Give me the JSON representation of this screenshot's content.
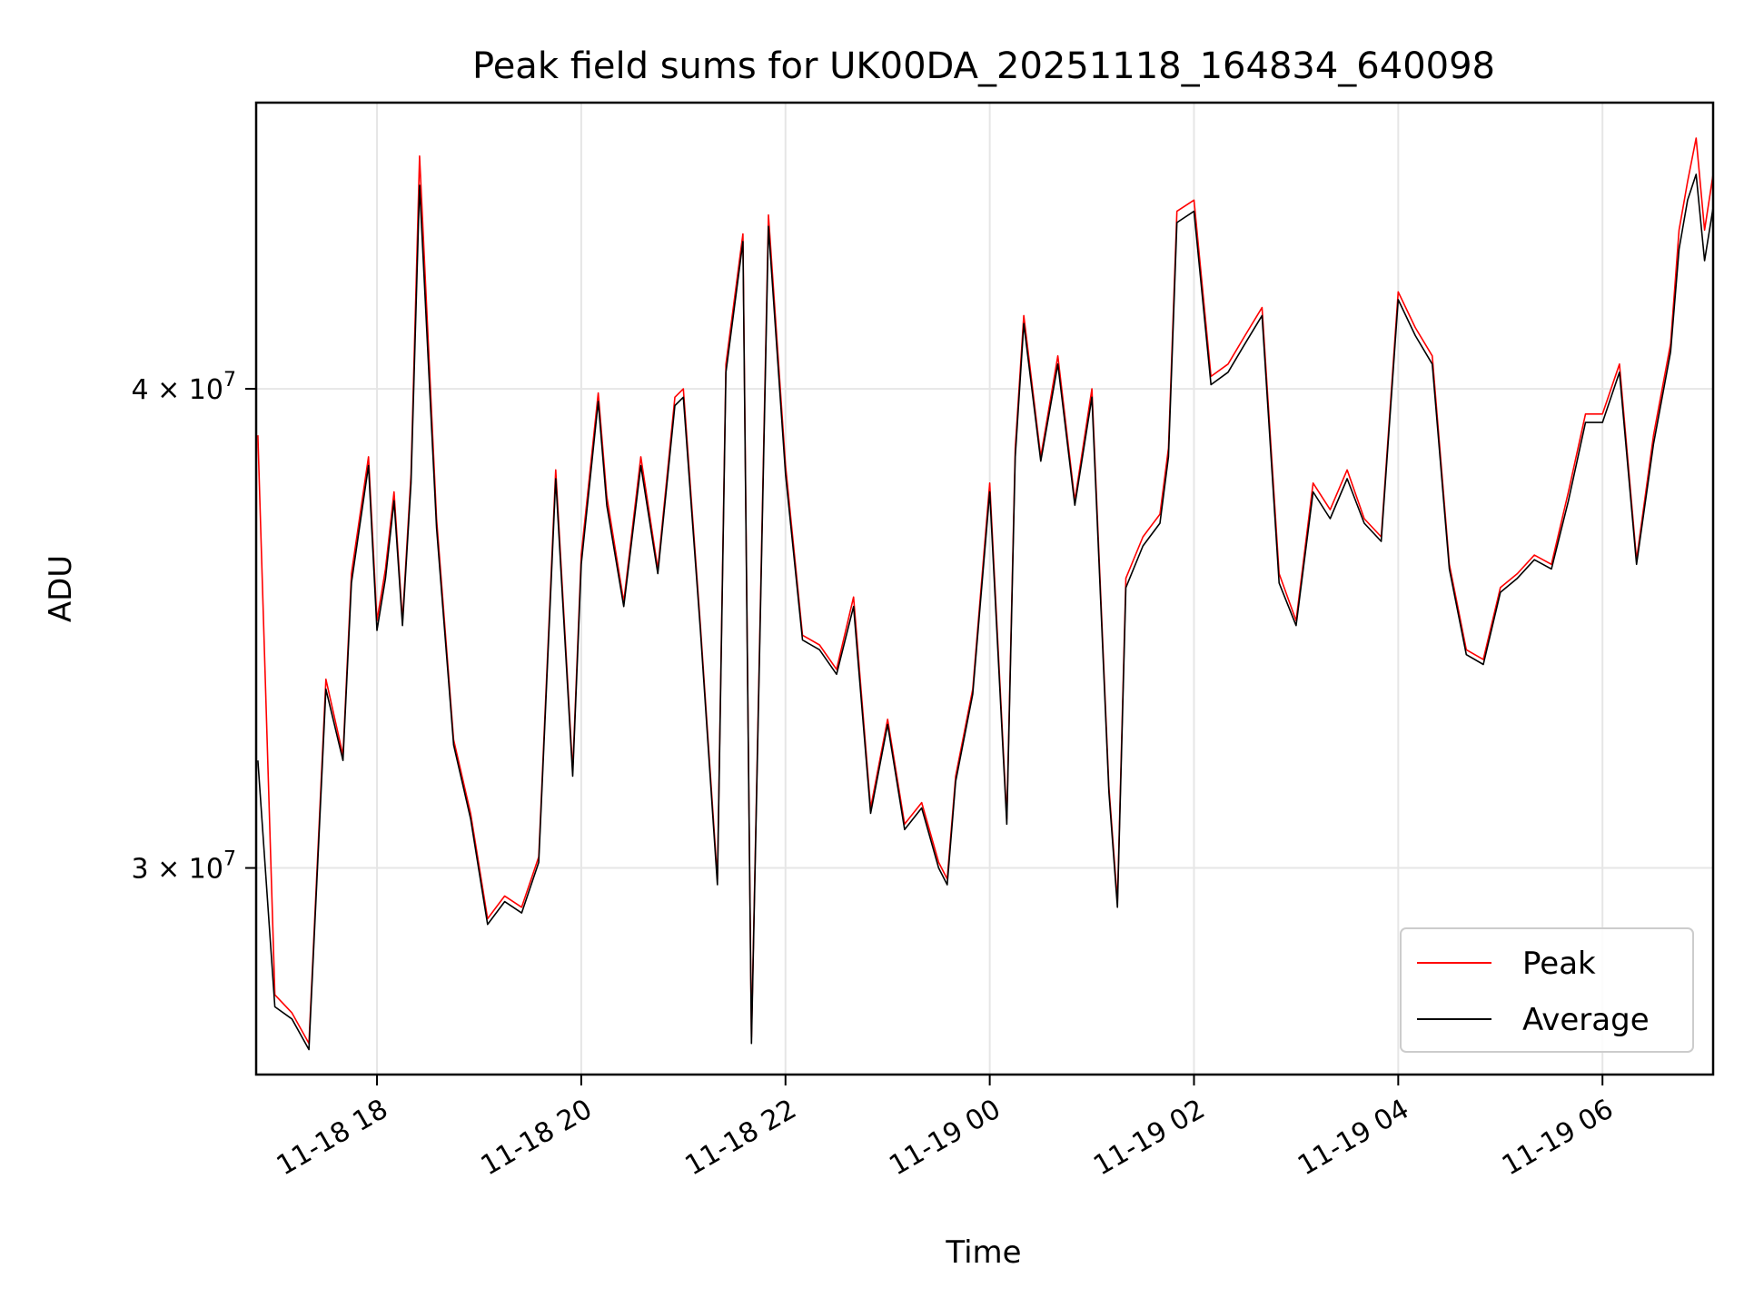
{
  "chart_data": {
    "type": "line",
    "title": "Peak field sums for UK00DA_20251118_164834_640098",
    "xlabel": "Time",
    "ylabel": "ADU",
    "y_scale": "log",
    "grid": true,
    "legend_position": "lower-right",
    "xlim": [
      "2025-11-18 16:49",
      "2025-11-19 07:05"
    ],
    "ylim": [
      26500000,
      47500000
    ],
    "x_ticks": [
      "11-18 18",
      "11-18 20",
      "11-18 22",
      "11-19 00",
      "11-19 02",
      "11-19 04",
      "11-19 06"
    ],
    "x_tick_times": [
      "2025-11-18 18:00",
      "2025-11-18 20:00",
      "2025-11-18 22:00",
      "2025-11-19 00:00",
      "2025-11-19 02:00",
      "2025-11-19 04:00",
      "2025-11-19 06:00"
    ],
    "y_ticks": [
      {
        "value": 30000000,
        "mantissa": "3",
        "exponent": "7"
      },
      {
        "value": 40000000,
        "mantissa": "4",
        "exponent": "7"
      }
    ],
    "series": [
      {
        "name": "Peak",
        "color": "#ff0000",
        "x": [
          "2025-11-18 16:50",
          "2025-11-18 17:00",
          "2025-11-18 17:10",
          "2025-11-18 17:20",
          "2025-11-18 17:30",
          "2025-11-18 17:40",
          "2025-11-18 17:45",
          "2025-11-18 17:55",
          "2025-11-18 18:00",
          "2025-11-18 18:05",
          "2025-11-18 18:10",
          "2025-11-18 18:15",
          "2025-11-18 18:20",
          "2025-11-18 18:25",
          "2025-11-18 18:35",
          "2025-11-18 18:45",
          "2025-11-18 18:55",
          "2025-11-18 19:05",
          "2025-11-18 19:15",
          "2025-11-18 19:25",
          "2025-11-18 19:35",
          "2025-11-18 19:45",
          "2025-11-18 19:55",
          "2025-11-18 20:00",
          "2025-11-18 20:10",
          "2025-11-18 20:15",
          "2025-11-18 20:25",
          "2025-11-18 20:35",
          "2025-11-18 20:45",
          "2025-11-18 20:55",
          "2025-11-18 21:00",
          "2025-11-18 21:10",
          "2025-11-18 21:20",
          "2025-11-18 21:25",
          "2025-11-18 21:35",
          "2025-11-18 21:40",
          "2025-11-18 21:50",
          "2025-11-18 22:00",
          "2025-11-18 22:10",
          "2025-11-18 22:20",
          "2025-11-18 22:30",
          "2025-11-18 22:40",
          "2025-11-18 22:50",
          "2025-11-18 23:00",
          "2025-11-18 23:10",
          "2025-11-18 23:20",
          "2025-11-18 23:30",
          "2025-11-18 23:35",
          "2025-11-18 23:40",
          "2025-11-18 23:50",
          "2025-11-19 00:00",
          "2025-11-19 00:10",
          "2025-11-19 00:15",
          "2025-11-19 00:20",
          "2025-11-19 00:30",
          "2025-11-19 00:40",
          "2025-11-19 00:50",
          "2025-11-19 01:00",
          "2025-11-19 01:10",
          "2025-11-19 01:15",
          "2025-11-19 01:20",
          "2025-11-19 01:30",
          "2025-11-19 01:40",
          "2025-11-19 01:45",
          "2025-11-19 01:50",
          "2025-11-19 02:00",
          "2025-11-19 02:10",
          "2025-11-19 02:20",
          "2025-11-19 02:30",
          "2025-11-19 02:40",
          "2025-11-19 02:50",
          "2025-11-19 03:00",
          "2025-11-19 03:10",
          "2025-11-19 03:20",
          "2025-11-19 03:30",
          "2025-11-19 03:40",
          "2025-11-19 03:50",
          "2025-11-19 04:00",
          "2025-11-19 04:10",
          "2025-11-19 04:20",
          "2025-11-19 04:30",
          "2025-11-19 04:40",
          "2025-11-19 04:50",
          "2025-11-19 05:00",
          "2025-11-19 05:10",
          "2025-11-19 05:20",
          "2025-11-19 05:30",
          "2025-11-19 05:40",
          "2025-11-19 05:50",
          "2025-11-19 06:00",
          "2025-11-19 06:10",
          "2025-11-19 06:20",
          "2025-11-19 06:30",
          "2025-11-19 06:40",
          "2025-11-19 06:45",
          "2025-11-19 06:50",
          "2025-11-19 06:55",
          "2025-11-19 07:00",
          "2025-11-19 07:05"
        ],
        "y": [
          38900000,
          27800000,
          27500000,
          27000000,
          33600000,
          32100000,
          35800000,
          38400000,
          34800000,
          35900000,
          37600000,
          34800000,
          38000000,
          46000000,
          37000000,
          32400000,
          31000000,
          29100000,
          29500000,
          29300000,
          30200000,
          38100000,
          31800000,
          36200000,
          39900000,
          37500000,
          35200000,
          38400000,
          35900000,
          39800000,
          40000000,
          34700000,
          29800000,
          40600000,
          43900000,
          27100000,
          44400000,
          38200000,
          34500000,
          34300000,
          33800000,
          35300000,
          31100000,
          32800000,
          30800000,
          31200000,
          30100000,
          29800000,
          31700000,
          33400000,
          37800000,
          30900000,
          38600000,
          41800000,
          38400000,
          40800000,
          37400000,
          40000000,
          31500000,
          29400000,
          35700000,
          36600000,
          37100000,
          38600000,
          44500000,
          44800000,
          40300000,
          40600000,
          41300000,
          42000000,
          35800000,
          34800000,
          37800000,
          37200000,
          38100000,
          37000000,
          36600000,
          42400000,
          41500000,
          40800000,
          36000000,
          34200000,
          34000000,
          35500000,
          35800000,
          36200000,
          36000000,
          37600000,
          39400000,
          39400000,
          40600000,
          36100000,
          38900000,
          41100000,
          44000000,
          45300000,
          46500000,
          44000000,
          45500000
        ],
        "data_name": "series-line-peak"
      },
      {
        "name": "Average",
        "color": "#000000",
        "x": [
          "2025-11-18 16:50",
          "2025-11-18 17:00",
          "2025-11-18 17:10",
          "2025-11-18 17:20",
          "2025-11-18 17:30",
          "2025-11-18 17:40",
          "2025-11-18 17:45",
          "2025-11-18 17:55",
          "2025-11-18 18:00",
          "2025-11-18 18:05",
          "2025-11-18 18:10",
          "2025-11-18 18:15",
          "2025-11-18 18:20",
          "2025-11-18 18:25",
          "2025-11-18 18:35",
          "2025-11-18 18:45",
          "2025-11-18 18:55",
          "2025-11-18 19:05",
          "2025-11-18 19:15",
          "2025-11-18 19:25",
          "2025-11-18 19:35",
          "2025-11-18 19:45",
          "2025-11-18 19:55",
          "2025-11-18 20:00",
          "2025-11-18 20:10",
          "2025-11-18 20:15",
          "2025-11-18 20:25",
          "2025-11-18 20:35",
          "2025-11-18 20:45",
          "2025-11-18 20:55",
          "2025-11-18 21:00",
          "2025-11-18 21:10",
          "2025-11-18 21:20",
          "2025-11-18 21:25",
          "2025-11-18 21:35",
          "2025-11-18 21:40",
          "2025-11-18 21:50",
          "2025-11-18 22:00",
          "2025-11-18 22:10",
          "2025-11-18 22:20",
          "2025-11-18 22:30",
          "2025-11-18 22:40",
          "2025-11-18 22:50",
          "2025-11-18 23:00",
          "2025-11-18 23:10",
          "2025-11-18 23:20",
          "2025-11-18 23:30",
          "2025-11-18 23:35",
          "2025-11-18 23:40",
          "2025-11-18 23:50",
          "2025-11-19 00:00",
          "2025-11-19 00:10",
          "2025-11-19 00:15",
          "2025-11-19 00:20",
          "2025-11-19 00:30",
          "2025-11-19 00:40",
          "2025-11-19 00:50",
          "2025-11-19 01:00",
          "2025-11-19 01:10",
          "2025-11-19 01:15",
          "2025-11-19 01:20",
          "2025-11-19 01:30",
          "2025-11-19 01:40",
          "2025-11-19 01:45",
          "2025-11-19 01:50",
          "2025-11-19 02:00",
          "2025-11-19 02:10",
          "2025-11-19 02:20",
          "2025-11-19 02:30",
          "2025-11-19 02:40",
          "2025-11-19 02:50",
          "2025-11-19 03:00",
          "2025-11-19 03:10",
          "2025-11-19 03:20",
          "2025-11-19 03:30",
          "2025-11-19 03:40",
          "2025-11-19 03:50",
          "2025-11-19 04:00",
          "2025-11-19 04:10",
          "2025-11-19 04:20",
          "2025-11-19 04:30",
          "2025-11-19 04:40",
          "2025-11-19 04:50",
          "2025-11-19 05:00",
          "2025-11-19 05:10",
          "2025-11-19 05:20",
          "2025-11-19 05:30",
          "2025-11-19 05:40",
          "2025-11-19 05:50",
          "2025-11-19 06:00",
          "2025-11-19 06:10",
          "2025-11-19 06:20",
          "2025-11-19 06:30",
          "2025-11-19 06:40",
          "2025-11-19 06:45",
          "2025-11-19 06:50",
          "2025-11-19 06:55",
          "2025-11-19 07:00",
          "2025-11-19 07:05"
        ],
        "y": [
          32000000,
          27600000,
          27400000,
          26900000,
          33400000,
          32000000,
          35600000,
          38200000,
          34600000,
          35700000,
          37400000,
          34700000,
          37800000,
          45200000,
          36800000,
          32300000,
          30900000,
          29000000,
          29400000,
          29200000,
          30100000,
          37900000,
          31700000,
          36000000,
          39700000,
          37300000,
          35100000,
          38200000,
          35800000,
          39600000,
          39800000,
          34600000,
          29700000,
          40400000,
          43700000,
          27000000,
          44100000,
          38000000,
          34400000,
          34200000,
          33700000,
          35100000,
          31000000,
          32700000,
          30700000,
          31100000,
          30000000,
          29700000,
          31600000,
          33300000,
          37600000,
          30800000,
          38400000,
          41600000,
          38300000,
          40600000,
          37300000,
          39800000,
          31400000,
          29300000,
          35500000,
          36400000,
          36900000,
          38400000,
          44200000,
          44500000,
          40100000,
          40400000,
          41100000,
          41800000,
          35600000,
          34700000,
          37600000,
          37000000,
          37900000,
          36900000,
          36500000,
          42200000,
          41300000,
          40600000,
          35900000,
          34100000,
          33900000,
          35400000,
          35700000,
          36100000,
          35900000,
          37400000,
          39200000,
          39200000,
          40400000,
          36000000,
          38700000,
          40900000,
          43500000,
          44800000,
          45500000,
          43200000,
          44600000
        ],
        "data_name": "series-line-average"
      }
    ]
  }
}
